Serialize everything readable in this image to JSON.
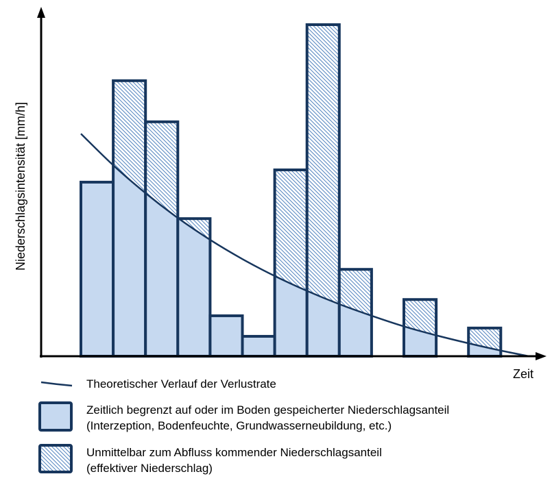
{
  "chart_data": {
    "type": "bar",
    "title": "",
    "xlabel": "Zeit",
    "ylabel": "Niederschlagsintensität [mm/h]",
    "y_units_note": "relative (percent of highest bar)",
    "time_slots": [
      0,
      1,
      2,
      3,
      4,
      5,
      6,
      7,
      8,
      10,
      12
    ],
    "values": [
      52.5,
      83.1,
      70.7,
      41.5,
      12.2,
      6.0,
      56.2,
      100,
      26.2,
      17.1,
      8.5
    ],
    "ylim": [
      0,
      105
    ],
    "xlim": [
      -1.2,
      14.4
    ],
    "grid": false,
    "loss_curve": {
      "name": "Theoretischer Verlauf der Verlustrate",
      "t": [
        0,
        1,
        2,
        3,
        4,
        5,
        6,
        7,
        8,
        9,
        10,
        11,
        12,
        13,
        13.87
      ],
      "values": [
        67.1,
        57.6,
        49.2,
        41.7,
        35.1,
        29.3,
        24.2,
        19.7,
        15.7,
        12.2,
        9.0,
        6.3,
        3.9,
        1.7,
        0
      ]
    },
    "legend": {
      "placement": "bottom",
      "curve_label": "Theoretischer Verlauf der Verlustrate",
      "stored_label_1": "Zeitlich begrenzt auf oder im Boden gespeicherter Niederschlagsanteil",
      "stored_label_2": "(Interzeption, Bodenfeuchte, Grundwasserneubildung, etc.)",
      "runoff_label_1": "Unmittelbar zum Abfluss kommender Niederschlagsanteil",
      "runoff_label_2": "(effektiver Niederschlag)"
    },
    "colors": {
      "outline": "#17365d",
      "stored_fill": "#c6d9f0",
      "hatch": "#4f81bd",
      "axis": "#000000"
    }
  }
}
